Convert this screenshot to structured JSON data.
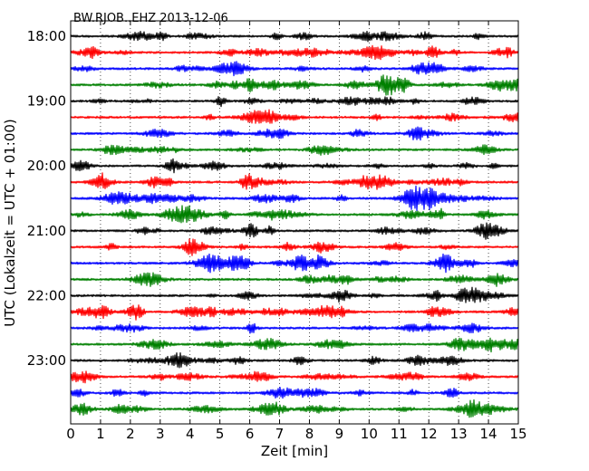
{
  "chart_data": {
    "type": "line",
    "title": "BW.RJOB..EHZ 2013-12-06",
    "xlabel": "Zeit  [min]",
    "ylabel": "UTC (Lokalzeit = UTC + 01:00)",
    "xlim": [
      0,
      15
    ],
    "x_ticks": [
      0,
      1,
      2,
      3,
      4,
      5,
      6,
      7,
      8,
      9,
      10,
      11,
      12,
      13,
      14,
      15
    ],
    "x_tick_labels": [
      "0",
      "1",
      "2",
      "3",
      "4",
      "5",
      "6",
      "7",
      "8",
      "9",
      "10",
      "11",
      "12",
      "13",
      "14",
      "15"
    ],
    "y_tick_labels": [
      {
        "label": "18:00",
        "trace": 0
      },
      {
        "label": "19:00",
        "trace": 4
      },
      {
        "label": "20:00",
        "trace": 8
      },
      {
        "label": "21:00",
        "trace": 12
      },
      {
        "label": "22:00",
        "trace": 16
      },
      {
        "label": "23:00",
        "trace": 20
      }
    ],
    "trace_count": 24,
    "trace_colors": [
      "#000000",
      "#ff0000",
      "#0000ff",
      "#008000"
    ],
    "vertical_grid": "dotted",
    "series": [
      {
        "start": "18:00"
      },
      {
        "start": "18:15"
      },
      {
        "start": "18:30"
      },
      {
        "start": "18:45"
      },
      {
        "start": "19:00"
      },
      {
        "start": "19:15"
      },
      {
        "start": "19:30"
      },
      {
        "start": "19:45"
      },
      {
        "start": "20:00"
      },
      {
        "start": "20:15"
      },
      {
        "start": "20:30"
      },
      {
        "start": "20:45"
      },
      {
        "start": "21:00"
      },
      {
        "start": "21:15"
      },
      {
        "start": "21:30"
      },
      {
        "start": "21:45"
      },
      {
        "start": "22:00"
      },
      {
        "start": "22:15"
      },
      {
        "start": "22:30"
      },
      {
        "start": "22:45"
      },
      {
        "start": "23:00"
      },
      {
        "start": "23:15"
      },
      {
        "start": "23:30"
      },
      {
        "start": "23:45"
      }
    ]
  }
}
